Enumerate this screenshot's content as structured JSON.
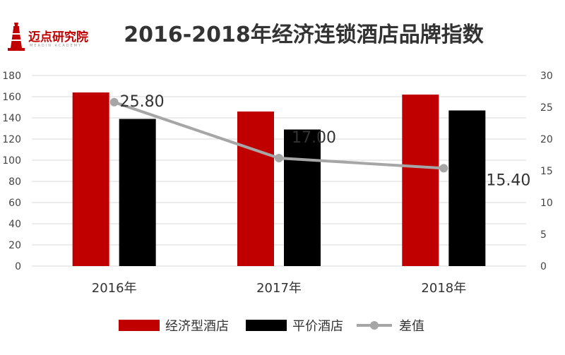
{
  "logo": {
    "text": "迈点研究院",
    "subtext": "MEADIN ACADEMY"
  },
  "chart_data": {
    "type": "bar",
    "title": "2016-2018年经济连锁酒店品牌指数",
    "categories": [
      "2016年",
      "2017年",
      "2018年"
    ],
    "series": [
      {
        "name": "经济型酒店",
        "type": "bar",
        "axis": "left",
        "color": "#c00000",
        "values": [
          164,
          146,
          162
        ]
      },
      {
        "name": "平价酒店",
        "type": "bar",
        "axis": "left",
        "color": "#000000",
        "values": [
          139,
          129,
          147
        ]
      },
      {
        "name": "差值",
        "type": "line",
        "axis": "right",
        "color": "#a6a6a6",
        "values": [
          25.8,
          17.0,
          15.4
        ],
        "labels": [
          "25.80",
          "17.00",
          "15.40"
        ]
      }
    ],
    "ylim": [
      0,
      180
    ],
    "yticks": [
      0,
      20,
      40,
      60,
      80,
      100,
      120,
      140,
      160,
      180
    ],
    "y2lim": [
      0,
      30
    ],
    "y2ticks": [
      0,
      5,
      10,
      15,
      20,
      25,
      30
    ],
    "grid": true,
    "legend": "bottom"
  }
}
